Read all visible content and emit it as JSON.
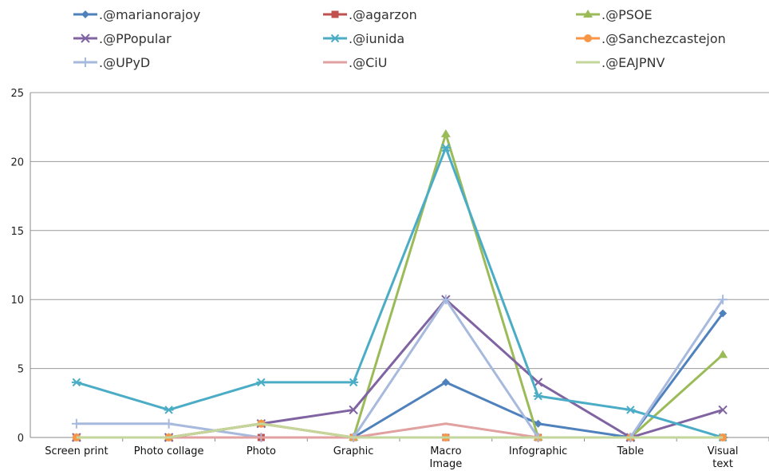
{
  "chart_data": {
    "type": "line",
    "categories": [
      "Screen print",
      "Photo collage",
      "Photo",
      "Graphic",
      "Macro Image",
      "Infographic",
      "Table",
      "Visual text"
    ],
    "ylim": [
      0,
      25
    ],
    "yticks": [
      0,
      5,
      10,
      15,
      20,
      25
    ],
    "grid": "horizontal",
    "legend_position": "top",
    "series": [
      {
        "name": ".@marianorajoy",
        "color": "#4f81bd",
        "marker": "diamond",
        "values": [
          0,
          0,
          0,
          0,
          4,
          1,
          0,
          9
        ]
      },
      {
        "name": ".@agarzon",
        "color": "#c0504d",
        "marker": "square",
        "values": [
          0,
          0,
          0,
          0,
          0,
          0,
          0,
          0
        ]
      },
      {
        "name": ".@PSOE",
        "color": "#9bbb59",
        "marker": "triangle",
        "values": [
          0,
          0,
          1,
          0,
          22,
          0,
          0,
          6
        ]
      },
      {
        "name": ".@PPopular",
        "color": "#8064a2",
        "marker": "x",
        "values": [
          0,
          0,
          1,
          2,
          10,
          4,
          0,
          2
        ]
      },
      {
        "name": ".@iunida",
        "color": "#4bacc6",
        "marker": "star",
        "values": [
          4,
          2,
          4,
          4,
          21,
          3,
          2,
          0
        ]
      },
      {
        "name": ".@Sanchezcastejon",
        "color": "#f79646",
        "marker": "circle",
        "values": [
          0,
          0,
          1,
          0,
          0,
          0,
          0,
          0
        ]
      },
      {
        "name": ".@UPyD",
        "color": "#a7b9dd",
        "marker": "plus",
        "values": [
          1,
          1,
          0,
          0,
          10,
          0,
          0,
          10
        ]
      },
      {
        "name": ".@CiU",
        "color": "#e0a1a0",
        "marker": "none",
        "values": [
          0,
          0,
          0,
          0,
          1,
          0,
          0,
          0
        ]
      },
      {
        "name": ".@EAJPNV",
        "color": "#c3d69b",
        "marker": "none",
        "values": [
          0,
          0,
          1,
          0,
          0,
          0,
          0,
          0
        ]
      }
    ]
  }
}
